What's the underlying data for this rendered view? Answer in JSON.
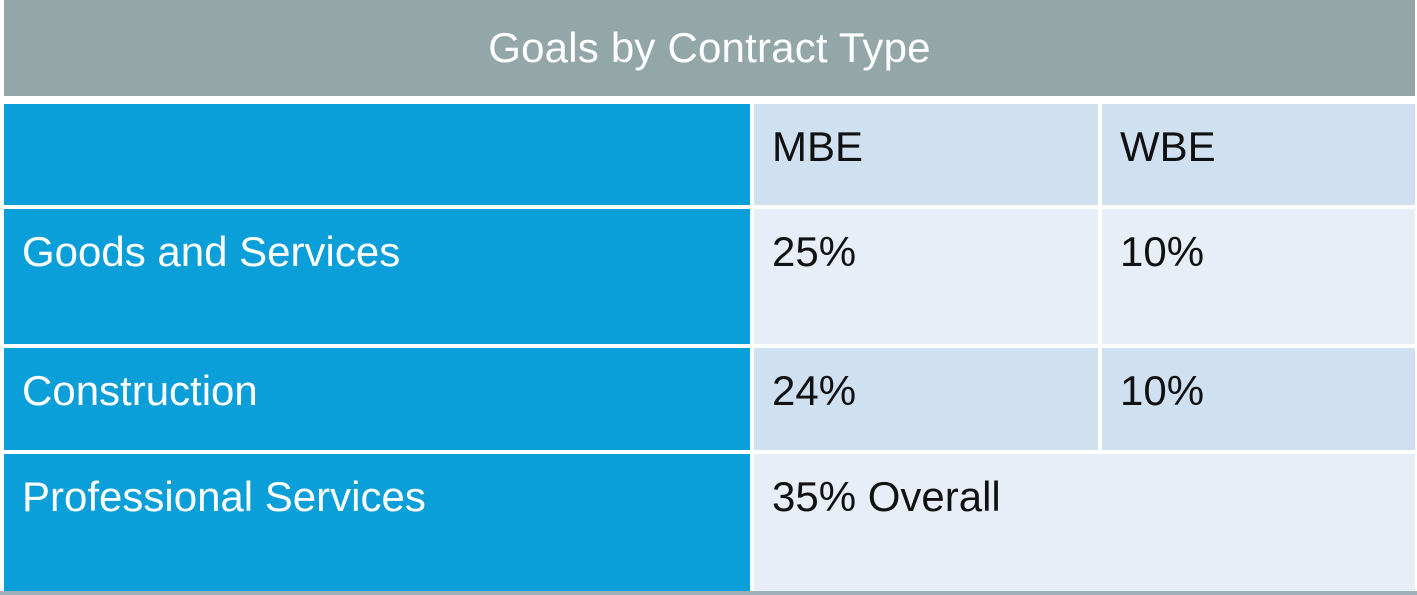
{
  "title": "Goals by Contract Type",
  "table": {
    "columns": [
      "",
      "MBE",
      "WBE"
    ],
    "rows": [
      {
        "label": "Goods and Services",
        "mbe": "25%",
        "wbe": "10%"
      },
      {
        "label": "Construction",
        "mbe": "24%",
        "wbe": "10%"
      },
      {
        "label": "Professional Services",
        "combined": "35% Overall"
      }
    ]
  },
  "colors": {
    "title_bar": "#94a7a8",
    "row_header": "#0a9fd8",
    "cell_light": "#e8eef7",
    "cell_mid": "#cfe0f1"
  }
}
